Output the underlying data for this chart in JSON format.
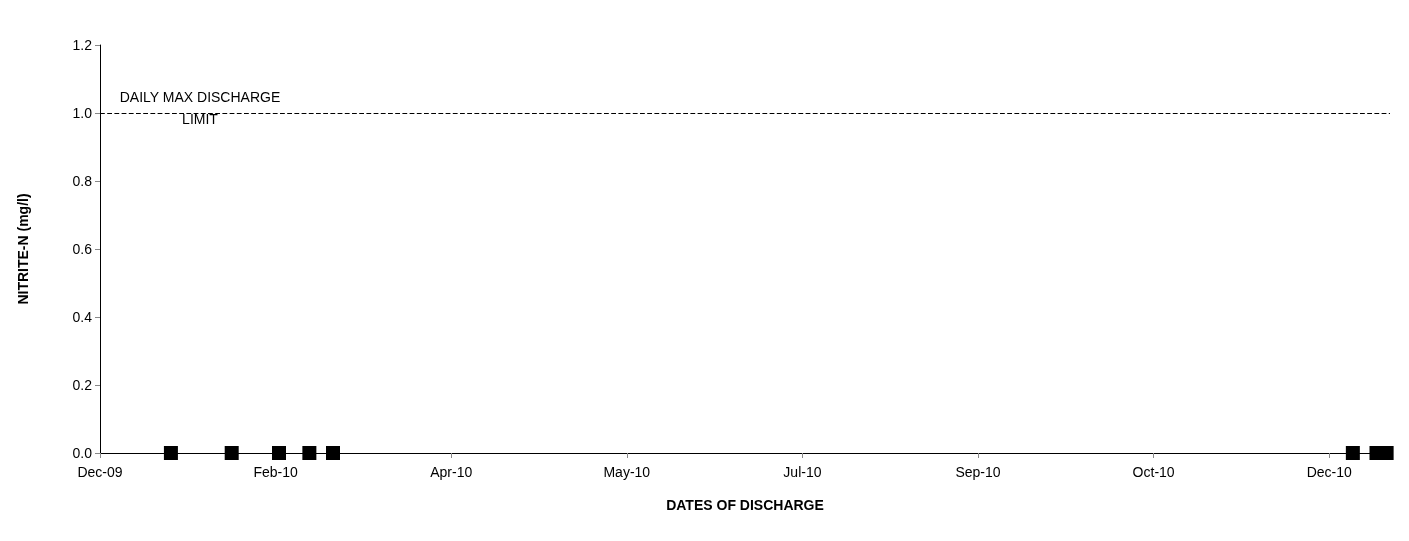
{
  "chart_data": {
    "type": "scatter",
    "xlabel": "DATES OF DISCHARGE",
    "ylabel": "NITRITE-N (mg/l)",
    "x": [
      "2010-01-09",
      "2010-01-27",
      "2010-02-10",
      "2010-02-19",
      "2010-02-26",
      "2010-12-25",
      "2011-01-01",
      "2011-01-04"
    ],
    "values": [
      0,
      0,
      0,
      0,
      0,
      0,
      0,
      0
    ],
    "color": "#000000",
    "marker": "square",
    "grid": false,
    "xlim": [
      "2009-12-19",
      "2011-01-05"
    ],
    "xticks": [
      {
        "value": "2009-12-19",
        "label": "Dec-09"
      },
      {
        "value": "2010-02-09",
        "label": "Feb-10"
      },
      {
        "value": "2010-04-02",
        "label": "Apr-10"
      },
      {
        "value": "2010-05-24",
        "label": "May-10"
      },
      {
        "value": "2010-07-15",
        "label": "Jul-10"
      },
      {
        "value": "2010-09-05",
        "label": "Sep-10"
      },
      {
        "value": "2010-10-27",
        "label": "Oct-10"
      },
      {
        "value": "2010-12-18",
        "label": "Dec-10"
      }
    ],
    "ylim": [
      0,
      1.2
    ],
    "yticks": [
      {
        "value": 0,
        "label": "0.0"
      },
      {
        "value": 0.2,
        "label": "0.2"
      },
      {
        "value": 0.4,
        "label": "0.4"
      },
      {
        "value": 0.6,
        "label": "0.6"
      },
      {
        "value": 0.8,
        "label": "0.8"
      },
      {
        "value": 1,
        "label": "1.0"
      },
      {
        "value": 1.2,
        "label": "1.2"
      }
    ],
    "ref_lines": [
      {
        "axis": "y",
        "value": 1,
        "label": "DAILY MAX DISCHARGE LIMIT",
        "color": "#000000",
        "line_style": "dashed"
      }
    ]
  }
}
